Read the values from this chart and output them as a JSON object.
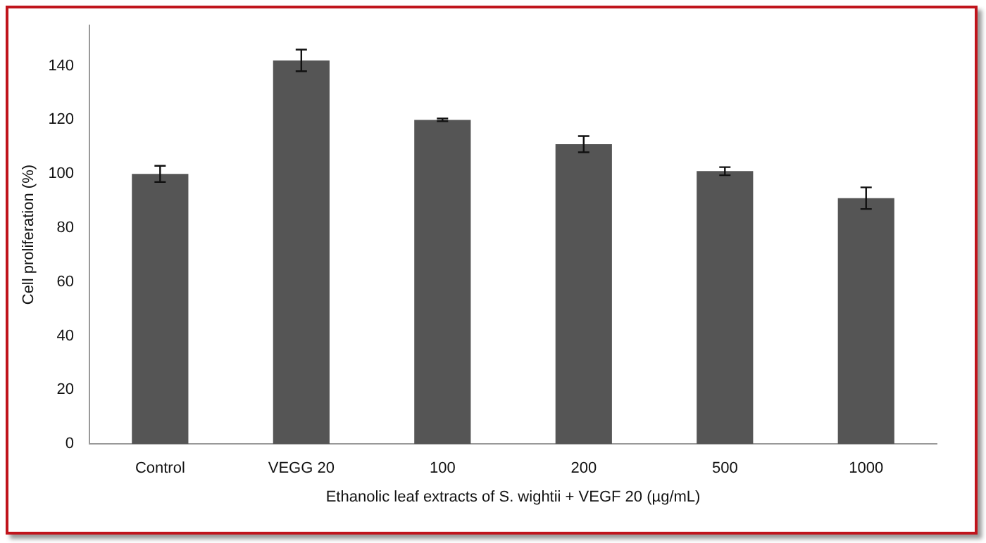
{
  "chart_data": {
    "type": "bar",
    "xlabel": "Ethanolic leaf extracts of S. wightii + VEGF 20 (µg/mL)",
    "ylabel": "Cell proliferation (%)",
    "categories": [
      "Control",
      "VEGG 20",
      "100",
      "200",
      "500",
      "1000"
    ],
    "values": [
      100,
      142,
      120,
      111,
      101,
      91
    ],
    "errors": [
      3,
      4,
      0.5,
      3,
      1.5,
      4
    ],
    "color": "#555555",
    "ylim": [
      0,
      155
    ],
    "yticks": [
      0,
      20,
      40,
      60,
      80,
      100,
      120,
      140
    ],
    "grid": false,
    "legend": false
  }
}
